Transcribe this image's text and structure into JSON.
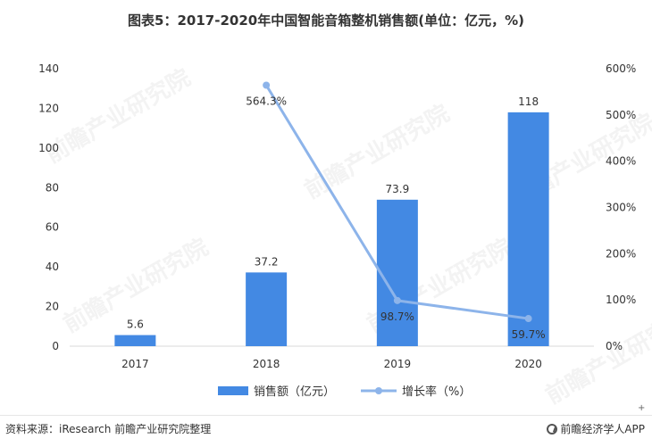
{
  "title": "图表5：2017-2020年中国智能音箱整机销售额(单位：亿元，%)",
  "source": "资料来源：iResearch 前瞻产业研究院整理",
  "brand": "前瞻经济学人APP",
  "watermark": "前瞻产业研究院",
  "colors": {
    "bar": "#4389e3",
    "line": "#8db4ea",
    "axis": "#d9d9d9",
    "text": "#333333"
  },
  "chart_data": {
    "type": "bar",
    "categories": [
      "2017",
      "2018",
      "2019",
      "2020"
    ],
    "series": [
      {
        "name": "销售额（亿元）",
        "type": "bar",
        "axis": "left",
        "values": [
          5.6,
          37.2,
          73.9,
          118
        ],
        "labels": [
          "5.6",
          "37.2",
          "73.9",
          "118"
        ]
      },
      {
        "name": "增长率（%）",
        "type": "line",
        "axis": "right",
        "values": [
          null,
          564.3,
          98.7,
          59.7
        ],
        "labels": [
          "",
          "564.3%",
          "98.7%",
          "59.7%"
        ]
      }
    ],
    "y_left": {
      "ylim": [
        0,
        140
      ],
      "ticks": [
        "0",
        "20",
        "40",
        "60",
        "80",
        "100",
        "120",
        "140"
      ]
    },
    "y_right": {
      "ylim": [
        0,
        600
      ],
      "ticks": [
        "0%",
        "100%",
        "200%",
        "300%",
        "400%",
        "500%",
        "600%"
      ]
    },
    "grid": false,
    "legend": "bottom-center"
  }
}
